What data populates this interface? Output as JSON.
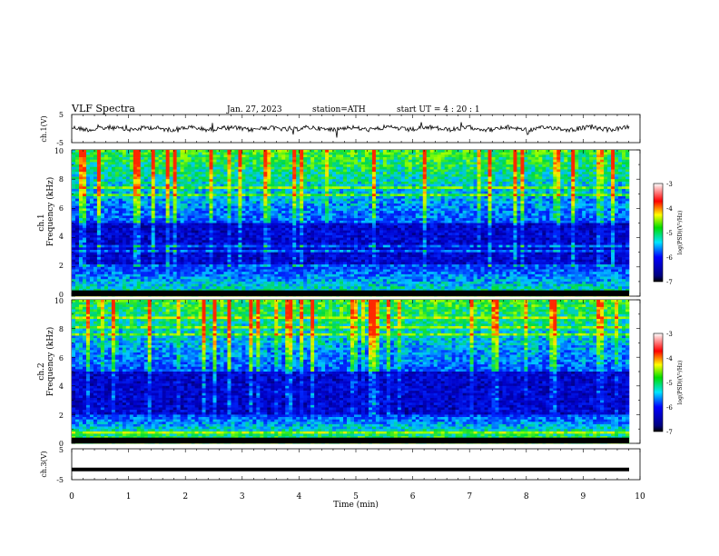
{
  "header": {
    "title": "VLF  Spectra",
    "date": "Jan. 27, 2023",
    "station": "station=ATH",
    "start": "start  UT  =   4  : 20 : 1"
  },
  "chart_data": [
    {
      "type": "line",
      "name": "ch1-waveform",
      "ylabel": "ch.1(V)",
      "xlim": [
        0,
        10
      ],
      "ylim": [
        -5,
        5
      ],
      "yticks": [
        "5",
        "-5"
      ]
    },
    {
      "type": "heatmap",
      "name": "ch1-spectrogram",
      "ylabel_top": "ch.1",
      "ylabel": "Frequency  (kHz)",
      "xlim": [
        0,
        10
      ],
      "ylim": [
        0,
        10
      ],
      "yticks": [
        "0",
        "2",
        "4",
        "6",
        "8",
        "10"
      ]
    },
    {
      "type": "heatmap",
      "name": "ch2-spectrogram",
      "ylabel_top": "ch.2",
      "ylabel": "Frequency  (kHz)",
      "xlim": [
        0,
        10
      ],
      "ylim": [
        0,
        10
      ],
      "yticks": [
        "0",
        "2",
        "4",
        "6",
        "8",
        "10"
      ]
    },
    {
      "type": "line",
      "name": "ch3-waveform",
      "ylabel": "ch.3(V)",
      "xlim": [
        0,
        10
      ],
      "ylim": [
        -5,
        5
      ],
      "yticks": [
        "5",
        "-5"
      ],
      "level": -1.7
    }
  ],
  "xaxis": {
    "label": "Time  (min)",
    "ticks": [
      "0",
      "1",
      "2",
      "3",
      "4",
      "5",
      "6",
      "7",
      "8",
      "9",
      "10"
    ]
  },
  "colorbar": {
    "label": "log(PSD)(V²/Hz)",
    "ticks": [
      "-3",
      "-4",
      "-5",
      "-6",
      "-7"
    ],
    "range": [
      -7,
      -3
    ]
  },
  "colors": {
    "background": "#ffffff",
    "axis": "#000000",
    "deep_blue": "#00008b",
    "blue": "#0000ff",
    "cyan": "#00e5ff",
    "green": "#00dd00",
    "yellow": "#ffff00",
    "red": "#ff0000"
  }
}
